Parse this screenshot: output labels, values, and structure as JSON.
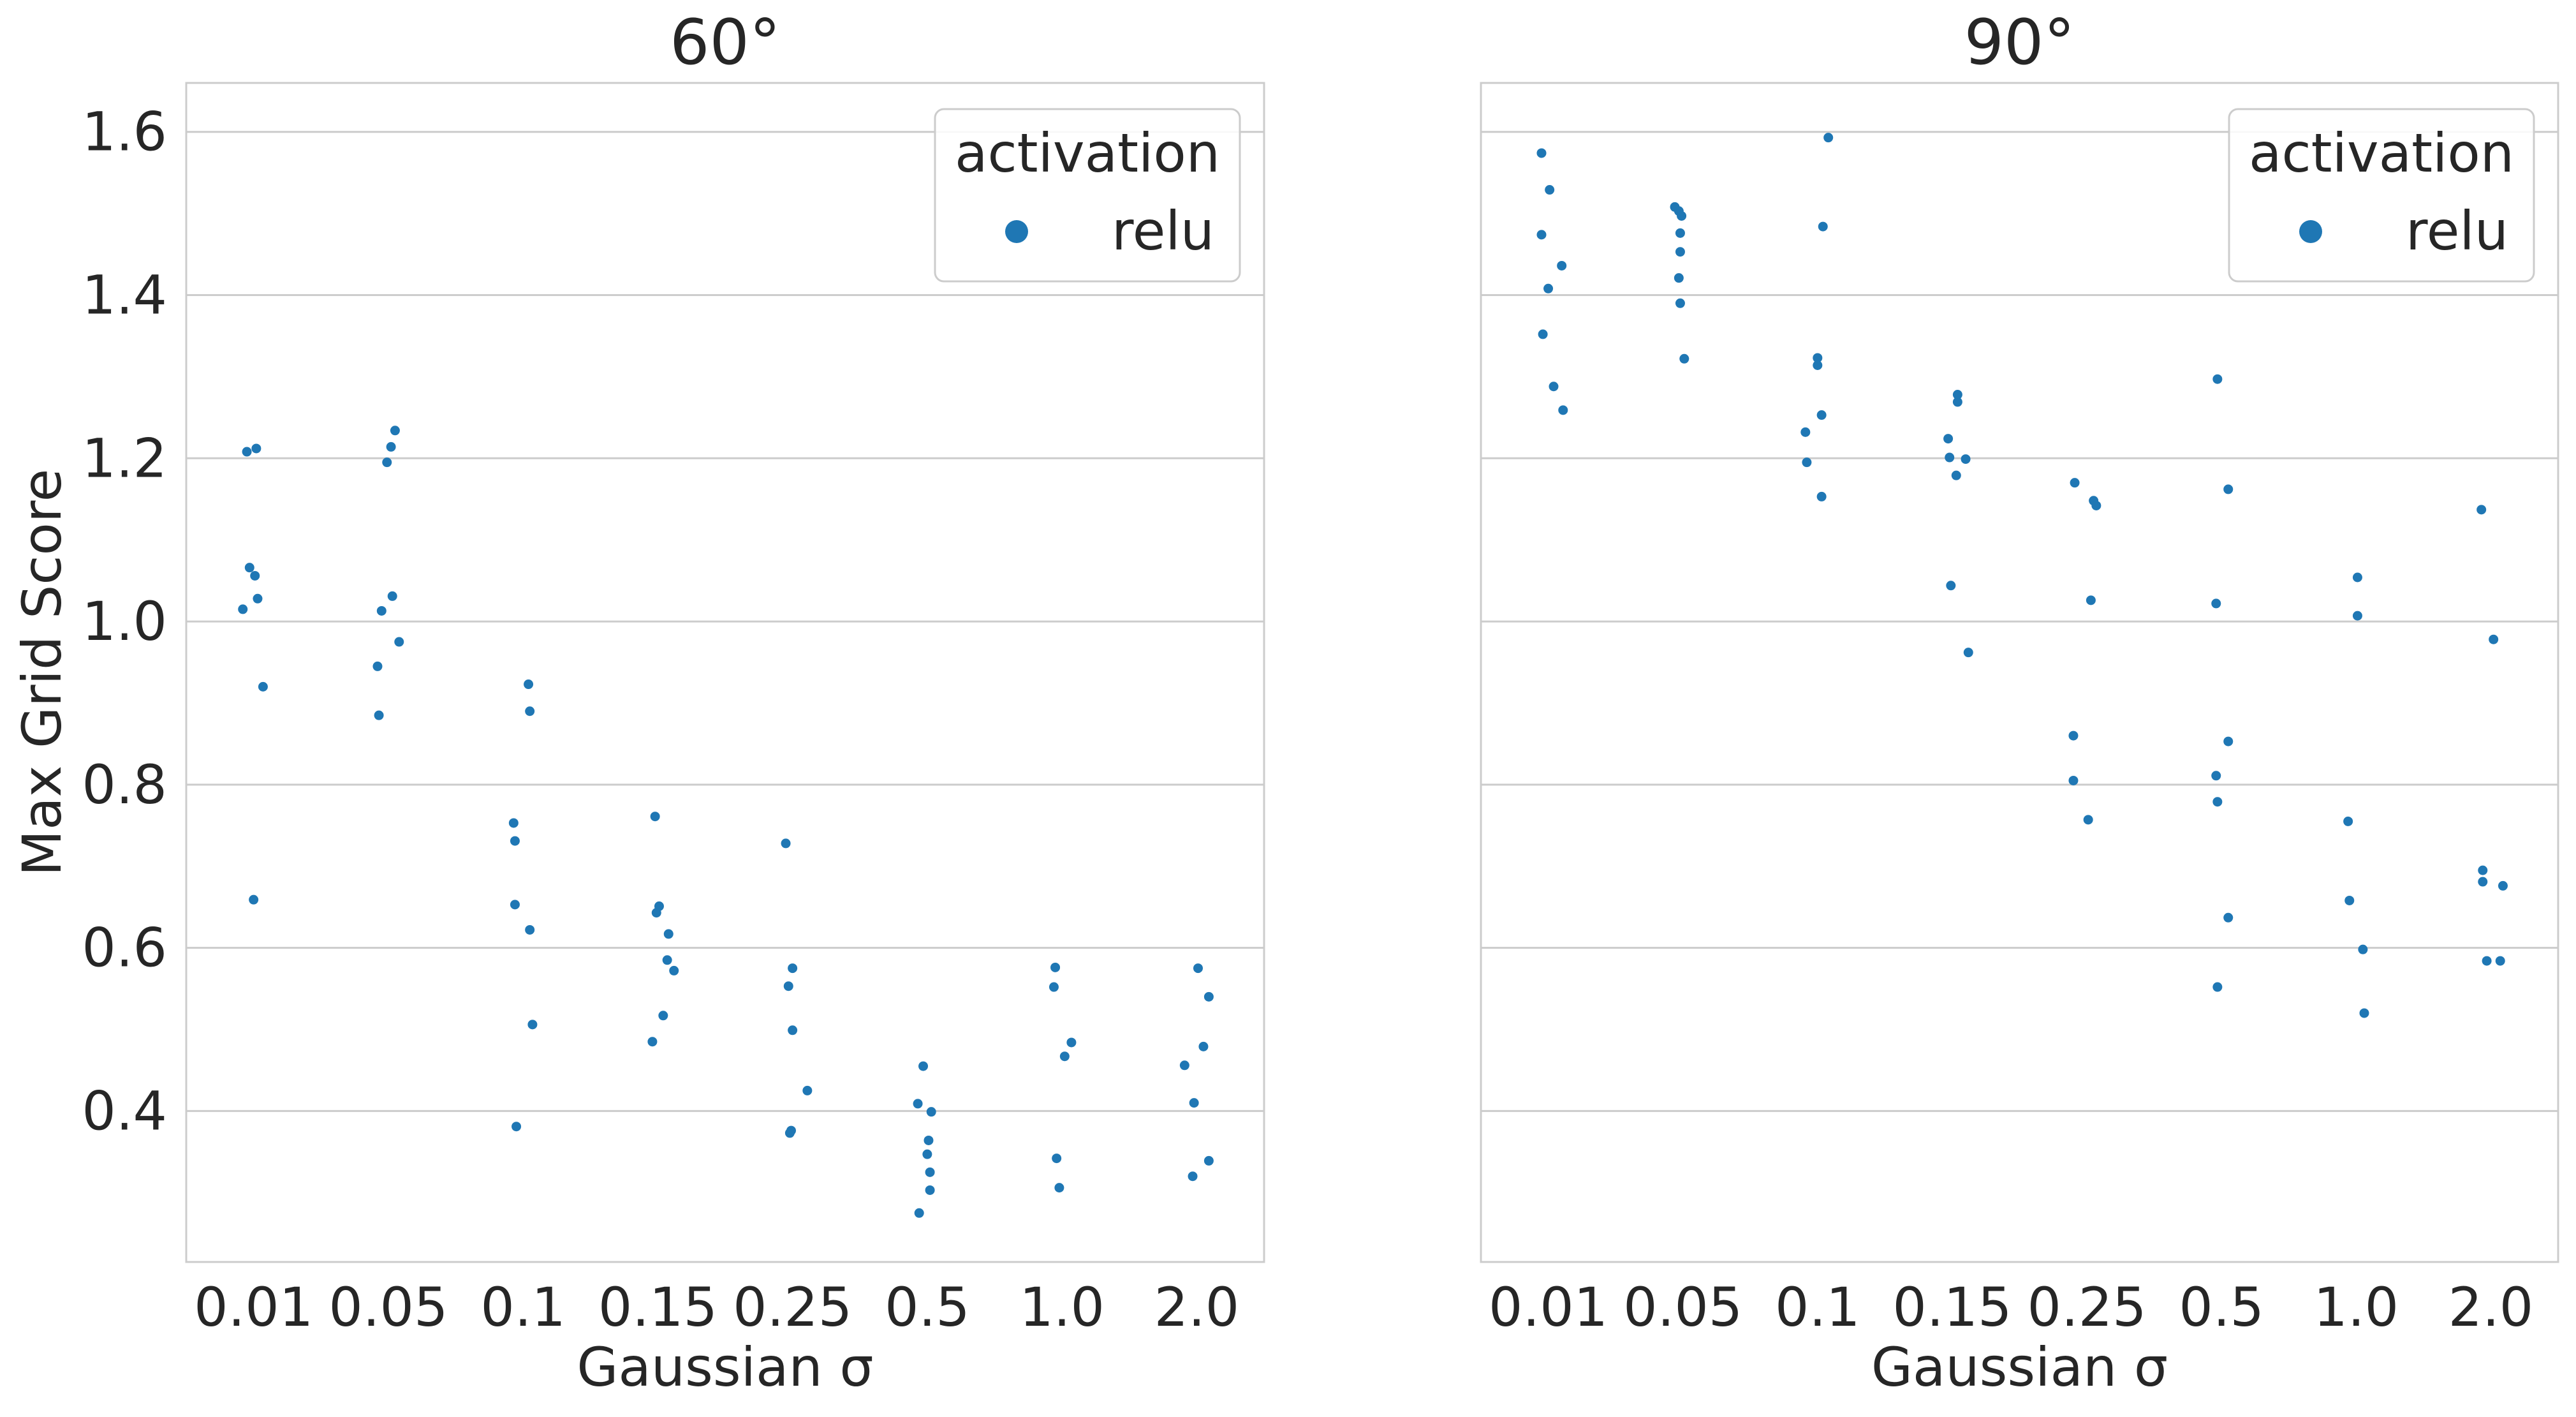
{
  "figure": {
    "ylabel": "Max Grid Score",
    "xlabel": "Gaussian σ"
  },
  "chart_data": [
    {
      "type": "scatter",
      "title": "60°",
      "xlabel": "Gaussian σ",
      "ylabel": "Max Grid Score",
      "categories": [
        "0.01",
        "0.05",
        "0.1",
        "0.15",
        "0.25",
        "0.5",
        "1.0",
        "2.0"
      ],
      "ylim": [
        0.215,
        1.66
      ],
      "yticks": [
        0.4,
        0.6,
        0.8,
        1.0,
        1.2,
        1.4,
        1.6
      ],
      "ytick_labels": [
        "0.4",
        "0.6",
        "0.8",
        "1.0",
        "1.2",
        "1.4",
        "1.6"
      ],
      "grid": "horizontal",
      "legend": {
        "title": "activation",
        "entries": [
          "relu"
        ],
        "placement": "top-right"
      },
      "series": [
        {
          "name": "relu",
          "color": "#1f77b4",
          "points": [
            {
              "x": "0.01",
              "jitter": -0.05,
              "y": 1.208
            },
            {
              "x": "0.01",
              "jitter": 0.02,
              "y": 1.212
            },
            {
              "x": "0.01",
              "jitter": -0.03,
              "y": 1.066
            },
            {
              "x": "0.01",
              "jitter": 0.01,
              "y": 1.056
            },
            {
              "x": "0.01",
              "jitter": 0.03,
              "y": 1.028
            },
            {
              "x": "0.01",
              "jitter": -0.08,
              "y": 1.015
            },
            {
              "x": "0.01",
              "jitter": 0.07,
              "y": 0.92
            },
            {
              "x": "0.01",
              "jitter": 0.0,
              "y": 0.659
            },
            {
              "x": "0.05",
              "jitter": 0.05,
              "y": 1.234
            },
            {
              "x": "0.05",
              "jitter": 0.02,
              "y": 1.214
            },
            {
              "x": "0.05",
              "jitter": -0.01,
              "y": 1.195
            },
            {
              "x": "0.05",
              "jitter": 0.03,
              "y": 1.031
            },
            {
              "x": "0.05",
              "jitter": -0.05,
              "y": 1.013
            },
            {
              "x": "0.05",
              "jitter": 0.08,
              "y": 0.975
            },
            {
              "x": "0.05",
              "jitter": -0.08,
              "y": 0.945
            },
            {
              "x": "0.05",
              "jitter": -0.07,
              "y": 0.885
            },
            {
              "x": "0.1",
              "jitter": 0.04,
              "y": 0.923
            },
            {
              "x": "0.1",
              "jitter": 0.05,
              "y": 0.89
            },
            {
              "x": "0.1",
              "jitter": -0.07,
              "y": 0.753
            },
            {
              "x": "0.1",
              "jitter": -0.06,
              "y": 0.731
            },
            {
              "x": "0.1",
              "jitter": -0.06,
              "y": 0.653
            },
            {
              "x": "0.1",
              "jitter": 0.05,
              "y": 0.622
            },
            {
              "x": "0.1",
              "jitter": 0.07,
              "y": 0.506
            },
            {
              "x": "0.1",
              "jitter": -0.05,
              "y": 0.381
            },
            {
              "x": "0.15",
              "jitter": -0.02,
              "y": 0.761
            },
            {
              "x": "0.15",
              "jitter": 0.01,
              "y": 0.651
            },
            {
              "x": "0.15",
              "jitter": -0.01,
              "y": 0.643
            },
            {
              "x": "0.15",
              "jitter": 0.08,
              "y": 0.617
            },
            {
              "x": "0.15",
              "jitter": 0.07,
              "y": 0.585
            },
            {
              "x": "0.15",
              "jitter": 0.12,
              "y": 0.572
            },
            {
              "x": "0.15",
              "jitter": 0.04,
              "y": 0.517
            },
            {
              "x": "0.15",
              "jitter": -0.04,
              "y": 0.485
            },
            {
              "x": "0.25",
              "jitter": -0.05,
              "y": 0.728
            },
            {
              "x": "0.25",
              "jitter": 0.0,
              "y": 0.575
            },
            {
              "x": "0.25",
              "jitter": -0.03,
              "y": 0.553
            },
            {
              "x": "0.25",
              "jitter": 0.0,
              "y": 0.499
            },
            {
              "x": "0.25",
              "jitter": 0.11,
              "y": 0.425
            },
            {
              "x": "0.25",
              "jitter": -0.01,
              "y": 0.376
            },
            {
              "x": "0.25",
              "jitter": -0.02,
              "y": 0.373
            },
            {
              "x": "0.5",
              "jitter": -0.03,
              "y": 0.455
            },
            {
              "x": "0.5",
              "jitter": -0.07,
              "y": 0.409
            },
            {
              "x": "0.5",
              "jitter": 0.03,
              "y": 0.399
            },
            {
              "x": "0.5",
              "jitter": 0.01,
              "y": 0.364
            },
            {
              "x": "0.5",
              "jitter": 0.0,
              "y": 0.347
            },
            {
              "x": "0.5",
              "jitter": 0.02,
              "y": 0.325
            },
            {
              "x": "0.5",
              "jitter": 0.02,
              "y": 0.303
            },
            {
              "x": "0.5",
              "jitter": -0.06,
              "y": 0.275
            },
            {
              "x": "1.0",
              "jitter": -0.05,
              "y": 0.576
            },
            {
              "x": "1.0",
              "jitter": -0.06,
              "y": 0.552
            },
            {
              "x": "1.0",
              "jitter": 0.07,
              "y": 0.484
            },
            {
              "x": "1.0",
              "jitter": 0.02,
              "y": 0.467
            },
            {
              "x": "1.0",
              "jitter": -0.04,
              "y": 0.342
            },
            {
              "x": "1.0",
              "jitter": -0.02,
              "y": 0.306
            },
            {
              "x": "2.0",
              "jitter": 0.01,
              "y": 0.575
            },
            {
              "x": "2.0",
              "jitter": 0.09,
              "y": 0.54
            },
            {
              "x": "2.0",
              "jitter": 0.05,
              "y": 0.479
            },
            {
              "x": "2.0",
              "jitter": -0.09,
              "y": 0.456
            },
            {
              "x": "2.0",
              "jitter": -0.02,
              "y": 0.41
            },
            {
              "x": "2.0",
              "jitter": 0.09,
              "y": 0.339
            },
            {
              "x": "2.0",
              "jitter": -0.03,
              "y": 0.32
            }
          ]
        }
      ]
    },
    {
      "type": "scatter",
      "title": "90°",
      "xlabel": "Gaussian σ",
      "ylabel": "",
      "categories": [
        "0.01",
        "0.05",
        "0.1",
        "0.15",
        "0.25",
        "0.5",
        "1.0",
        "2.0"
      ],
      "ylim": [
        0.215,
        1.66
      ],
      "yticks": [
        0.4,
        0.6,
        0.8,
        1.0,
        1.2,
        1.4,
        1.6
      ],
      "ytick_labels": [],
      "grid": "horizontal",
      "legend": {
        "title": "activation",
        "entries": [
          "relu"
        ],
        "placement": "top-right"
      },
      "series": [
        {
          "name": "relu",
          "color": "#1f77b4",
          "points": [
            {
              "x": "0.01",
              "jitter": -0.05,
              "y": 1.574
            },
            {
              "x": "0.01",
              "jitter": 0.01,
              "y": 1.529
            },
            {
              "x": "0.01",
              "jitter": -0.05,
              "y": 1.474
            },
            {
              "x": "0.01",
              "jitter": 0.1,
              "y": 1.436
            },
            {
              "x": "0.01",
              "jitter": 0.0,
              "y": 1.408
            },
            {
              "x": "0.01",
              "jitter": -0.04,
              "y": 1.352
            },
            {
              "x": "0.01",
              "jitter": 0.04,
              "y": 1.288
            },
            {
              "x": "0.01",
              "jitter": 0.11,
              "y": 1.259
            },
            {
              "x": "0.05",
              "jitter": -0.06,
              "y": 1.508
            },
            {
              "x": "0.05",
              "jitter": -0.03,
              "y": 1.503
            },
            {
              "x": "0.05",
              "jitter": -0.01,
              "y": 1.497
            },
            {
              "x": "0.05",
              "jitter": -0.02,
              "y": 1.476
            },
            {
              "x": "0.05",
              "jitter": -0.02,
              "y": 1.453
            },
            {
              "x": "0.05",
              "jitter": -0.03,
              "y": 1.421
            },
            {
              "x": "0.05",
              "jitter": -0.02,
              "y": 1.39
            },
            {
              "x": "0.05",
              "jitter": 0.01,
              "y": 1.322
            },
            {
              "x": "0.1",
              "jitter": 0.08,
              "y": 1.593
            },
            {
              "x": "0.1",
              "jitter": 0.04,
              "y": 1.484
            },
            {
              "x": "0.1",
              "jitter": 0.0,
              "y": 1.323
            },
            {
              "x": "0.1",
              "jitter": 0.0,
              "y": 1.314
            },
            {
              "x": "0.1",
              "jitter": 0.03,
              "y": 1.253
            },
            {
              "x": "0.1",
              "jitter": -0.09,
              "y": 1.232
            },
            {
              "x": "0.1",
              "jitter": -0.08,
              "y": 1.195
            },
            {
              "x": "0.1",
              "jitter": 0.03,
              "y": 1.153
            },
            {
              "x": "0.15",
              "jitter": 0.04,
              "y": 1.278
            },
            {
              "x": "0.15",
              "jitter": 0.04,
              "y": 1.269
            },
            {
              "x": "0.15",
              "jitter": -0.03,
              "y": 1.224
            },
            {
              "x": "0.15",
              "jitter": -0.02,
              "y": 1.201
            },
            {
              "x": "0.15",
              "jitter": 0.1,
              "y": 1.199
            },
            {
              "x": "0.15",
              "jitter": 0.03,
              "y": 1.179
            },
            {
              "x": "0.15",
              "jitter": -0.01,
              "y": 1.044
            },
            {
              "x": "0.15",
              "jitter": 0.12,
              "y": 0.962
            },
            {
              "x": "0.25",
              "jitter": -0.09,
              "y": 1.17
            },
            {
              "x": "0.25",
              "jitter": 0.05,
              "y": 1.148
            },
            {
              "x": "0.25",
              "jitter": 0.07,
              "y": 1.142
            },
            {
              "x": "0.25",
              "jitter": 0.03,
              "y": 1.026
            },
            {
              "x": "0.25",
              "jitter": -0.1,
              "y": 0.86
            },
            {
              "x": "0.25",
              "jitter": -0.1,
              "y": 0.805
            },
            {
              "x": "0.25",
              "jitter": 0.01,
              "y": 0.757
            },
            {
              "x": "0.5",
              "jitter": -0.03,
              "y": 1.297
            },
            {
              "x": "0.5",
              "jitter": 0.05,
              "y": 1.162
            },
            {
              "x": "0.5",
              "jitter": -0.04,
              "y": 1.022
            },
            {
              "x": "0.5",
              "jitter": 0.05,
              "y": 0.853
            },
            {
              "x": "0.5",
              "jitter": -0.04,
              "y": 0.811
            },
            {
              "x": "0.5",
              "jitter": -0.03,
              "y": 0.779
            },
            {
              "x": "0.5",
              "jitter": 0.05,
              "y": 0.637
            },
            {
              "x": "0.5",
              "jitter": -0.03,
              "y": 0.552
            },
            {
              "x": "1.0",
              "jitter": 0.01,
              "y": 1.054
            },
            {
              "x": "1.0",
              "jitter": 0.01,
              "y": 1.007
            },
            {
              "x": "1.0",
              "jitter": -0.06,
              "y": 0.755
            },
            {
              "x": "1.0",
              "jitter": -0.05,
              "y": 0.658
            },
            {
              "x": "1.0",
              "jitter": 0.05,
              "y": 0.598
            },
            {
              "x": "1.0",
              "jitter": 0.06,
              "y": 0.52
            },
            {
              "x": "2.0",
              "jitter": -0.07,
              "y": 1.137
            },
            {
              "x": "2.0",
              "jitter": 0.02,
              "y": 0.978
            },
            {
              "x": "2.0",
              "jitter": -0.06,
              "y": 0.695
            },
            {
              "x": "2.0",
              "jitter": -0.06,
              "y": 0.681
            },
            {
              "x": "2.0",
              "jitter": 0.09,
              "y": 0.676
            },
            {
              "x": "2.0",
              "jitter": -0.03,
              "y": 0.584
            },
            {
              "x": "2.0",
              "jitter": 0.07,
              "y": 0.584
            }
          ]
        }
      ]
    }
  ]
}
